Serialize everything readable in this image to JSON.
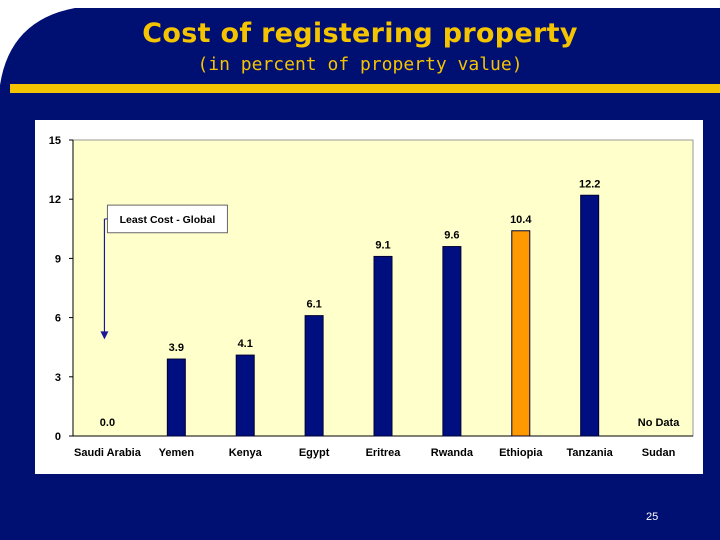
{
  "slide": {
    "title": "Cost of registering property",
    "subtitle": "(in percent of property value)",
    "page_number": "25"
  },
  "colors": {
    "background": "#000f72",
    "title": "#f5c400",
    "accent_bar": "#f5c400",
    "plot_area": "#ffffcc",
    "bar_default": "#000f80",
    "bar_highlight": "#ff9900"
  },
  "chart_data": {
    "type": "bar",
    "title": "",
    "xlabel": "",
    "ylabel": "",
    "ylim": [
      0,
      15
    ],
    "yticks": [
      0,
      3,
      6,
      9,
      12,
      15
    ],
    "grid": false,
    "categories": [
      "Saudi Arabia",
      "Yemen",
      "Kenya",
      "Egypt",
      "Eritrea",
      "Rwanda",
      "Ethiopia",
      "Tanzania",
      "Sudan"
    ],
    "values": [
      0.0,
      3.9,
      4.1,
      6.1,
      9.1,
      9.6,
      10.4,
      12.2,
      null
    ],
    "data_labels": [
      "0.0",
      "3.9",
      "4.1",
      "6.1",
      "9.1",
      "9.6",
      "10.4",
      "12.2",
      "No Data"
    ],
    "highlight": [
      "Ethiopia"
    ],
    "annotation": {
      "text": "Least Cost - Global",
      "target": "Saudi Arabia"
    }
  }
}
